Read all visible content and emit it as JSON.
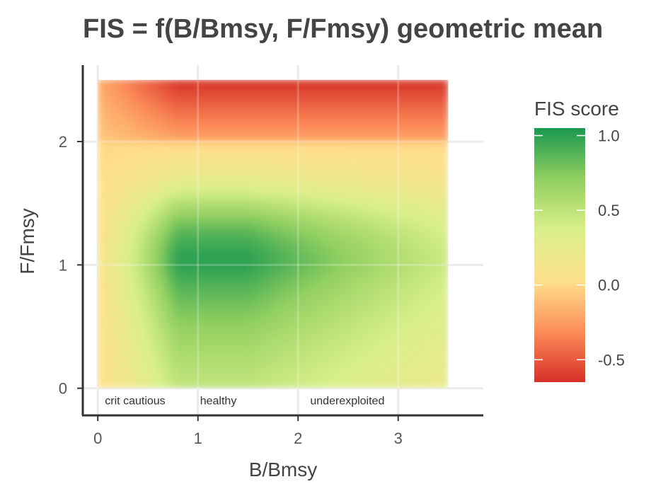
{
  "chart_data": {
    "type": "heatmap",
    "title": "FIS = f(B/Bmsy, F/Fmsy) geometric mean",
    "xlabel": "B/Bmsy",
    "ylabel": "F/Fmsy",
    "xlim": [
      -0.15,
      3.85
    ],
    "ylim": [
      -0.22,
      2.62
    ],
    "x_data_range": [
      0,
      3.5
    ],
    "y_data_range": [
      0,
      2.5
    ],
    "x_ticks": [
      0,
      1,
      2,
      3
    ],
    "y_ticks": [
      0,
      1,
      2
    ],
    "grid": true,
    "region_labels": [
      {
        "text": "crit cautious",
        "x": 0.05
      },
      {
        "text": "healthy",
        "x": 1.0
      },
      {
        "text": "underexploited",
        "x": 2.1
      }
    ],
    "colorbar": {
      "title": "FIS score",
      "range": [
        -0.65,
        1.05
      ],
      "ticks": [
        1.0,
        0.5,
        0.0,
        -0.5
      ],
      "tick_labels": [
        "1.0",
        "0.5",
        "0.0",
        "-0.5"
      ],
      "colors": [
        "#1a9850",
        "#91cf60",
        "#d9ef8b",
        "#fee08b",
        "#fc8d59",
        "#d73027"
      ]
    },
    "legend_position": "right"
  }
}
